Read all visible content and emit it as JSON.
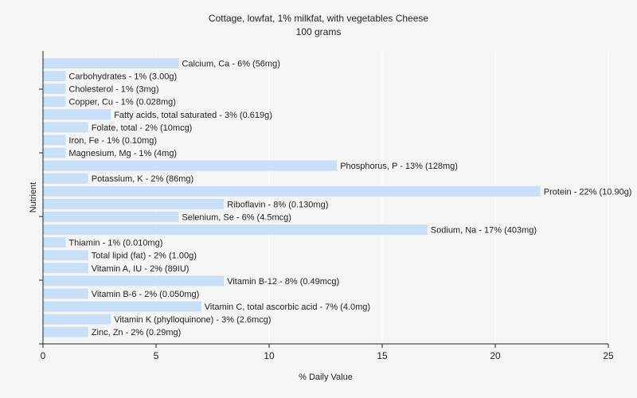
{
  "chart_data": {
    "type": "bar",
    "orientation": "horizontal",
    "title": "Cottage, lowfat, 1% milkfat, with vegetables Cheese",
    "subtitle": "100 grams",
    "xlabel": "% Daily Value",
    "ylabel": "Nutrient",
    "xlim": [
      0,
      25
    ],
    "xticks": [
      0,
      5,
      10,
      15,
      20,
      25
    ],
    "grid": true,
    "bar_color": "#c7e0f8",
    "categories": [
      "Calcium, Ca",
      "Carbohydrates",
      "Cholesterol",
      "Copper, Cu",
      "Fatty acids, total saturated",
      "Folate, total",
      "Iron, Fe",
      "Magnesium, Mg",
      "Phosphorus, P",
      "Potassium, K",
      "Protein",
      "Riboflavin",
      "Selenium, Se",
      "Sodium, Na",
      "Thiamin",
      "Total lipid (fat)",
      "Vitamin A, IU",
      "Vitamin B-12",
      "Vitamin B-6",
      "Vitamin C, total ascorbic acid",
      "Vitamin K (phylloquinone)",
      "Zinc, Zn"
    ],
    "values": [
      6,
      1,
      1,
      1,
      3,
      2,
      1,
      1,
      13,
      2,
      22,
      8,
      6,
      17,
      1,
      2,
      2,
      8,
      2,
      7,
      3,
      2
    ],
    "labels": [
      "Calcium, Ca - 6% (56mg)",
      "Carbohydrates - 1% (3.00g)",
      "Cholesterol - 1% (3mg)",
      "Copper, Cu - 1% (0.028mg)",
      "Fatty acids, total saturated - 3% (0.619g)",
      "Folate, total - 2% (10mcg)",
      "Iron, Fe - 1% (0.10mg)",
      "Magnesium, Mg - 1% (4mg)",
      "Phosphorus, P - 13% (128mg)",
      "Potassium, K - 2% (86mg)",
      "Protein - 22% (10.90g)",
      "Riboflavin - 8% (0.130mg)",
      "Selenium, Se - 6% (4.5mcg)",
      "Sodium, Na - 17% (403mg)",
      "Thiamin - 1% (0.010mg)",
      "Total lipid (fat) - 2% (1.00g)",
      "Vitamin A, IU - 2% (89IU)",
      "Vitamin B-12 - 8% (0.49mcg)",
      "Vitamin B-6 - 2% (0.050mg)",
      "Vitamin C, total ascorbic acid - 7% (4.0mg)",
      "Vitamin K (phylloquinone) - 3% (2.6mcg)",
      "Zinc, Zn - 2% (0.29mg)"
    ]
  }
}
